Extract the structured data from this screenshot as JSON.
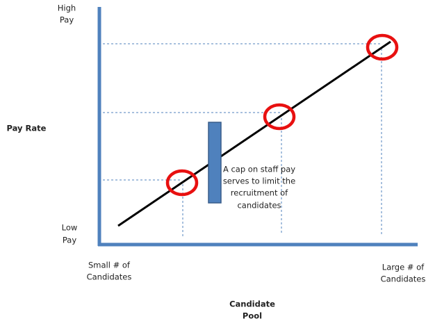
{
  "y_axis": {
    "label": "Pay Rate",
    "top_label": [
      "High",
      "Pay"
    ],
    "bottom_label": [
      "Low",
      "Pay"
    ]
  },
  "x_axis": {
    "label": [
      "Candidate",
      "Pool"
    ],
    "left_label": [
      "Small # of",
      "Candidates"
    ],
    "right_label": [
      "Large # of",
      "Candidates"
    ]
  },
  "annotation": [
    "A cap on staff pay",
    "serves to limit the",
    "recruitment of",
    "candidates"
  ]
}
